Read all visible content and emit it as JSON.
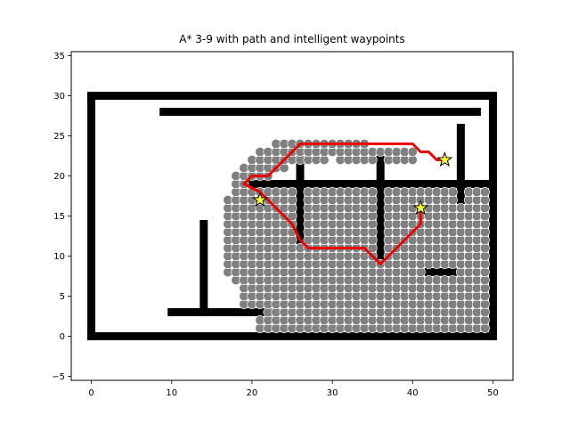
{
  "chart_data": {
    "type": "scatter",
    "title": "A* 3-9 with path and intelligent waypoints",
    "xlabel": "",
    "ylabel": "",
    "xlim": [
      -2.5,
      52.5
    ],
    "ylim": [
      -5.5,
      35.5
    ],
    "xticks": [
      0,
      10,
      20,
      30,
      40,
      50
    ],
    "yticks": [
      -5,
      0,
      5,
      10,
      15,
      20,
      25,
      30,
      35
    ],
    "grid": false,
    "colors": {
      "obstacle": "#000000",
      "explored": "#808080",
      "explored_edge": "#ffffff",
      "path": "#ee0000",
      "waypoint_fill": "#ffff33",
      "waypoint_edge": "#000000",
      "axes": "#000000",
      "background": "#ffffff"
    },
    "obstacles": [
      {
        "x1": 0,
        "y1": 0,
        "x2": 50,
        "y2": 0
      },
      {
        "x1": 0,
        "y1": 30,
        "x2": 50,
        "y2": 30
      },
      {
        "x1": 0,
        "y1": 0,
        "x2": 0,
        "y2": 30
      },
      {
        "x1": 50,
        "y1": 0,
        "x2": 50,
        "y2": 30
      },
      {
        "x1": 9,
        "y1": 28,
        "x2": 48,
        "y2": 28
      },
      {
        "x1": 10,
        "y1": 3,
        "x2": 22,
        "y2": 3
      },
      {
        "x1": 14,
        "y1": 3,
        "x2": 14,
        "y2": 14
      },
      {
        "x1": 20,
        "y1": 19,
        "x2": 50,
        "y2": 19
      },
      {
        "x1": 26,
        "y1": 12,
        "x2": 26,
        "y2": 22
      },
      {
        "x1": 36,
        "y1": 10,
        "x2": 36,
        "y2": 22
      },
      {
        "x1": 46,
        "y1": 17,
        "x2": 46,
        "y2": 26
      },
      {
        "x1": 42,
        "y1": 8,
        "x2": 45,
        "y2": 8
      }
    ],
    "explored_rows": [
      {
        "y": 1,
        "from": 21,
        "to": 49
      },
      {
        "y": 2,
        "from": 21,
        "to": 49
      },
      {
        "y": 3,
        "from": 22,
        "to": 49
      },
      {
        "y": 4,
        "from": 19,
        "to": 49
      },
      {
        "y": 5,
        "from": 19,
        "to": 49
      },
      {
        "y": 6,
        "from": 19,
        "to": 49
      },
      {
        "y": 7,
        "from": 18,
        "to": 49
      },
      {
        "y": 8,
        "from": 17,
        "to": 49
      },
      {
        "y": 9,
        "from": 17,
        "to": 49
      },
      {
        "y": 10,
        "from": 17,
        "to": 49
      },
      {
        "y": 11,
        "from": 17,
        "to": 49
      },
      {
        "y": 12,
        "from": 17,
        "to": 49
      },
      {
        "y": 13,
        "from": 17,
        "to": 49
      },
      {
        "y": 14,
        "from": 17,
        "to": 49
      },
      {
        "y": 15,
        "from": 17,
        "to": 49
      },
      {
        "y": 16,
        "from": 17,
        "to": 49
      },
      {
        "y": 17,
        "from": 17,
        "to": 49
      },
      {
        "y": 18,
        "from": 18,
        "to": 49
      },
      {
        "y": 19,
        "from": 18,
        "to": 19
      },
      {
        "y": 20,
        "from": 18,
        "to": 22
      },
      {
        "y": 21,
        "from": 19,
        "to": 24
      },
      {
        "y": 22,
        "from": 20,
        "to": 29
      },
      {
        "y": 22,
        "from": 31,
        "to": 35
      },
      {
        "y": 22,
        "from": 37,
        "to": 40
      },
      {
        "y": 23,
        "from": 21,
        "to": 40
      },
      {
        "y": 24,
        "from": 23,
        "to": 34
      }
    ],
    "explored_skip": [
      {
        "x": 14,
        "y": 4
      },
      {
        "x": 14,
        "y": 5
      },
      {
        "x": 14,
        "y": 6
      },
      {
        "x": 14,
        "y": 7
      },
      {
        "x": 14,
        "y": 8
      },
      {
        "x": 14,
        "y": 9
      },
      {
        "x": 14,
        "y": 10
      },
      {
        "x": 14,
        "y": 11
      },
      {
        "x": 14,
        "y": 12
      },
      {
        "x": 14,
        "y": 13
      },
      {
        "x": 14,
        "y": 14
      },
      {
        "x": 26,
        "y": 12
      },
      {
        "x": 26,
        "y": 13
      },
      {
        "x": 26,
        "y": 14
      },
      {
        "x": 26,
        "y": 15
      },
      {
        "x": 26,
        "y": 16
      },
      {
        "x": 26,
        "y": 17
      },
      {
        "x": 26,
        "y": 18
      },
      {
        "x": 36,
        "y": 10
      },
      {
        "x": 36,
        "y": 11
      },
      {
        "x": 36,
        "y": 12
      },
      {
        "x": 36,
        "y": 13
      },
      {
        "x": 36,
        "y": 14
      },
      {
        "x": 36,
        "y": 15
      },
      {
        "x": 36,
        "y": 16
      },
      {
        "x": 36,
        "y": 17
      },
      {
        "x": 36,
        "y": 18
      },
      {
        "x": 42,
        "y": 8
      },
      {
        "x": 43,
        "y": 8
      },
      {
        "x": 44,
        "y": 8
      },
      {
        "x": 45,
        "y": 8
      },
      {
        "x": 46,
        "y": 17
      },
      {
        "x": 46,
        "y": 18
      }
    ],
    "path": {
      "x": [
        41,
        41,
        40,
        36,
        34,
        27,
        26,
        25,
        24,
        21,
        19,
        20,
        22,
        24,
        26,
        30,
        36,
        40,
        41,
        42,
        43,
        44
      ],
      "y": [
        16,
        14,
        13,
        9,
        11,
        11,
        12,
        14,
        15,
        18,
        19,
        20,
        20,
        22,
        24,
        24,
        24,
        24,
        23,
        23,
        22,
        22
      ]
    },
    "waypoints": {
      "x": [
        21,
        41,
        44
      ],
      "y": [
        17,
        16,
        22
      ]
    }
  }
}
